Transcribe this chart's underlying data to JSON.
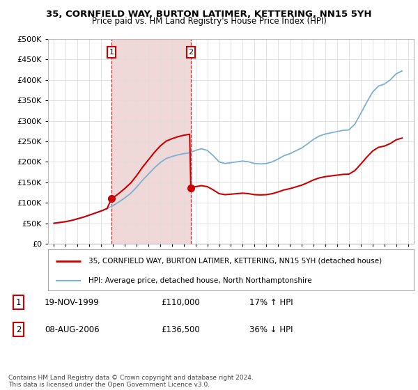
{
  "title1": "35, CORNFIELD WAY, BURTON LATIMER, KETTERING, NN15 5YH",
  "title2": "Price paid vs. HM Land Registry's House Price Index (HPI)",
  "legend_line1": "35, CORNFIELD WAY, BURTON LATIMER, KETTERING, NN15 5YH (detached house)",
  "legend_line2": "HPI: Average price, detached house, North Northamptonshire",
  "annotation1_label": "1",
  "annotation1_date": "19-NOV-1999",
  "annotation1_price": "£110,000",
  "annotation1_hpi": "17% ↑ HPI",
  "annotation2_label": "2",
  "annotation2_date": "08-AUG-2006",
  "annotation2_price": "£136,500",
  "annotation2_hpi": "36% ↓ HPI",
  "footer": "Contains HM Land Registry data © Crown copyright and database right 2024.\nThis data is licensed under the Open Government Licence v3.0.",
  "hpi_color": "#7bafd4",
  "price_color": "#cc0000",
  "sale1_x": 1999.88,
  "sale1_y": 110000,
  "sale2_x": 2006.6,
  "sale2_y": 136500,
  "ylim": [
    0,
    500000
  ],
  "xlim": [
    1994.5,
    2025.5
  ],
  "shaded_color": "#f0d8d8",
  "grid_color": "#dddddd",
  "border_color": "#aaaaaa"
}
